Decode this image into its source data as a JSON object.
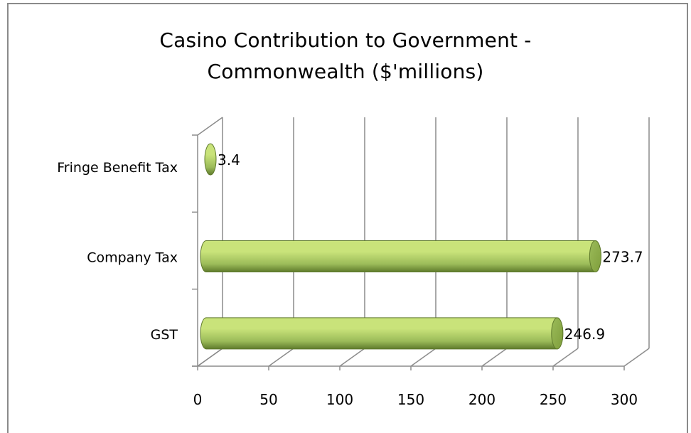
{
  "chart_data": {
    "type": "bar",
    "orientation": "horizontal",
    "style": "3d-cylinder",
    "title_lines": [
      "Casino Contribution to Government -",
      "Commonwealth ($'millions)"
    ],
    "categories": [
      "Fringe Benefit Tax",
      "Company Tax",
      "GST"
    ],
    "values": [
      3.4,
      273.7,
      246.9
    ],
    "data_labels": [
      "3.4",
      "273.7",
      "246.9"
    ],
    "x_ticks": [
      "0",
      "50",
      "100",
      "150",
      "200",
      "250",
      "300"
    ],
    "xlim": [
      0,
      300
    ],
    "grid": true,
    "legend": "none",
    "colors": {
      "bar_light": "#c9e37a",
      "bar_mid": "#9bbb59",
      "bar_dark": "#5f7a2c",
      "bar_cap": "#7f9e3c",
      "grid": "#8c8c8c",
      "axis": "#8c8c8c",
      "text": "#000000"
    }
  }
}
